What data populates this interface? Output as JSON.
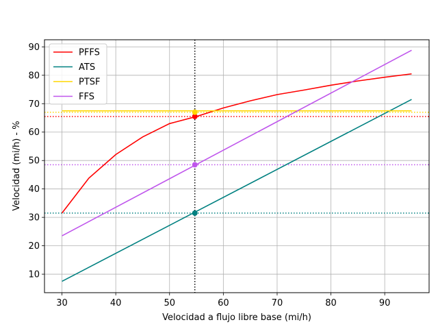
{
  "chart_data": {
    "type": "line",
    "title": "",
    "xlabel": "Velocidad a flujo libre base (mi/h)",
    "ylabel": "Velocidad (mi/h) - %",
    "xlim": [
      26.75,
      98.25
    ],
    "ylim": [
      3.5,
      92.5
    ],
    "xticks": [
      30,
      40,
      50,
      60,
      70,
      80,
      90
    ],
    "yticks": [
      10,
      20,
      30,
      40,
      50,
      60,
      70,
      80,
      90
    ],
    "grid": true,
    "legend_position": "top-left",
    "vertical_reference_x": 54.7,
    "series": [
      {
        "name": "PFFS",
        "color": "#ff0000",
        "x": [
          30,
          35,
          40,
          45,
          50,
          55,
          60,
          65,
          70,
          75,
          80,
          85,
          90,
          95
        ],
        "y": [
          31.5,
          43.8,
          52.1,
          58.3,
          63.0,
          65.5,
          68.5,
          71.0,
          73.2,
          74.8,
          76.5,
          78.0,
          79.3,
          80.5
        ],
        "marker": {
          "x": 54.7,
          "y": 65.5
        },
        "reference_y": 65.5
      },
      {
        "name": "ATS",
        "color": "#008080",
        "x": [
          30,
          95
        ],
        "y": [
          7.5,
          71.5
        ],
        "marker": {
          "x": 54.7,
          "y": 31.5
        },
        "reference_y": 31.5
      },
      {
        "name": "PTSF",
        "color": "#ffd700",
        "x": [
          30,
          95
        ],
        "y": [
          67.5,
          67.5
        ],
        "marker": {
          "x": 54.7,
          "y": 67.0
        },
        "reference_y": 67.0
      },
      {
        "name": "FFS",
        "color": "#bf55ec",
        "x": [
          30,
          95
        ],
        "y": [
          23.5,
          88.8
        ],
        "marker": {
          "x": 54.7,
          "y": 48.5
        },
        "reference_y": 48.5
      }
    ]
  }
}
